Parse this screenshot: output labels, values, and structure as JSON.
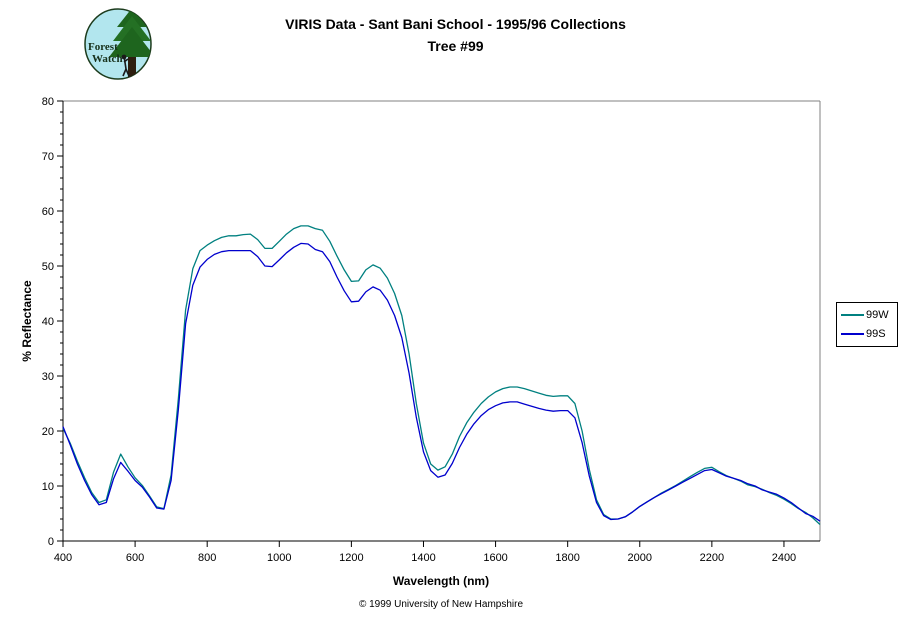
{
  "logo": {
    "text_line1": "Forest",
    "text_line2": "Watch",
    "bg_color": "#b2e6ee",
    "tree_color": "#1e651e",
    "trunk_color": "#2d1e0f"
  },
  "footer": {
    "copyright": "© 1999 University of New Hampshire"
  },
  "chart_data": {
    "type": "line",
    "title": "VIRIS Data - Sant Bani School - 1995/96 Collections",
    "subtitle": "Tree #99",
    "xlabel": "Wavelength (nm)",
    "ylabel": "% Reflectance",
    "xlim": [
      400,
      2500
    ],
    "ylim": [
      0,
      80
    ],
    "x_ticks": [
      400,
      600,
      800,
      1000,
      1200,
      1400,
      1600,
      1800,
      2000,
      2200,
      2400
    ],
    "y_ticks_major": [
      0,
      10,
      20,
      30,
      40,
      50,
      60,
      70,
      80
    ],
    "y_minor_step": 2,
    "grid": false,
    "legend_position": "right-outside",
    "axis_border_color": "#808080",
    "x": [
      400,
      420,
      440,
      460,
      480,
      500,
      520,
      540,
      560,
      580,
      600,
      620,
      640,
      660,
      680,
      700,
      720,
      740,
      760,
      780,
      800,
      820,
      840,
      860,
      880,
      900,
      920,
      940,
      960,
      980,
      1000,
      1020,
      1040,
      1060,
      1080,
      1100,
      1120,
      1140,
      1160,
      1180,
      1200,
      1220,
      1240,
      1260,
      1280,
      1300,
      1320,
      1340,
      1360,
      1380,
      1400,
      1420,
      1440,
      1460,
      1480,
      1500,
      1520,
      1540,
      1560,
      1580,
      1600,
      1620,
      1640,
      1660,
      1680,
      1700,
      1720,
      1740,
      1760,
      1780,
      1800,
      1820,
      1840,
      1860,
      1880,
      1900,
      1920,
      1940,
      1960,
      1980,
      2000,
      2020,
      2040,
      2060,
      2080,
      2100,
      2120,
      2140,
      2160,
      2180,
      2200,
      2220,
      2240,
      2260,
      2280,
      2300,
      2320,
      2340,
      2360,
      2380,
      2400,
      2420,
      2440,
      2460,
      2480,
      2500
    ],
    "series": [
      {
        "name": "99W",
        "color": "#008080",
        "values": [
          20.5,
          17.8,
          14.5,
          11.5,
          8.8,
          7.0,
          7.5,
          12.5,
          15.8,
          13.5,
          11.5,
          10.1,
          8.2,
          6.2,
          5.9,
          12.0,
          26.0,
          42.0,
          49.5,
          52.8,
          53.8,
          54.6,
          55.2,
          55.5,
          55.5,
          55.7,
          55.8,
          54.8,
          53.2,
          53.2,
          54.5,
          55.8,
          56.8,
          57.3,
          57.3,
          56.8,
          56.5,
          54.5,
          51.8,
          49.3,
          47.2,
          47.3,
          49.3,
          50.2,
          49.6,
          47.8,
          45.0,
          41.0,
          34.0,
          25.0,
          17.8,
          14.0,
          12.9,
          13.5,
          15.8,
          19.0,
          21.5,
          23.4,
          25.0,
          26.2,
          27.1,
          27.7,
          28.0,
          28.0,
          27.7,
          27.3,
          26.9,
          26.5,
          26.3,
          26.4,
          26.4,
          25.0,
          20.0,
          13.0,
          7.5,
          4.8,
          4.0,
          4.0,
          4.4,
          5.3,
          6.3,
          7.1,
          7.9,
          8.7,
          9.4,
          10.1,
          10.9,
          11.7,
          12.5,
          13.2,
          13.4,
          12.6,
          11.9,
          11.4,
          10.9,
          10.2,
          9.9,
          9.4,
          8.8,
          8.3,
          7.6,
          6.8,
          5.9,
          5.2,
          4.2,
          3.0
        ]
      },
      {
        "name": "99S",
        "color": "#0000cd",
        "values": [
          20.8,
          17.5,
          14.0,
          11.0,
          8.4,
          6.6,
          7.0,
          11.3,
          14.3,
          12.7,
          11.0,
          9.8,
          8.0,
          6.0,
          5.8,
          11.0,
          24.0,
          39.5,
          46.5,
          49.8,
          51.2,
          52.1,
          52.6,
          52.8,
          52.8,
          52.8,
          52.8,
          51.7,
          50.0,
          49.9,
          51.1,
          52.4,
          53.4,
          54.1,
          54.0,
          53.0,
          52.6,
          50.8,
          48.0,
          45.5,
          43.5,
          43.6,
          45.3,
          46.2,
          45.6,
          43.8,
          41.0,
          37.0,
          30.5,
          22.5,
          16.2,
          12.8,
          11.6,
          12.0,
          14.1,
          17.0,
          19.4,
          21.3,
          22.8,
          23.9,
          24.6,
          25.1,
          25.3,
          25.3,
          24.9,
          24.5,
          24.1,
          23.8,
          23.6,
          23.7,
          23.7,
          22.4,
          17.9,
          11.8,
          7.0,
          4.6,
          3.9,
          4.0,
          4.4,
          5.3,
          6.3,
          7.1,
          7.9,
          8.6,
          9.3,
          10.0,
          10.7,
          11.4,
          12.1,
          12.8,
          13.0,
          12.4,
          11.8,
          11.4,
          11.0,
          10.4,
          10.0,
          9.3,
          8.9,
          8.5,
          7.8,
          7.0,
          6.0,
          5.0,
          4.5,
          3.6
        ]
      }
    ]
  }
}
